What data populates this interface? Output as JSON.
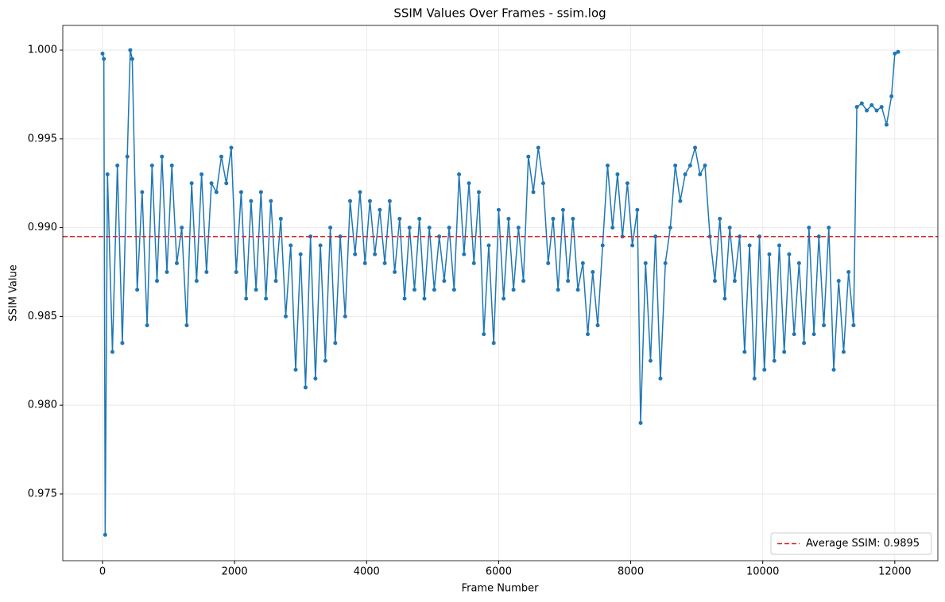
{
  "chart_data": {
    "type": "line",
    "title": "SSIM Values Over Frames - ssim.log",
    "x_label": "Frame Number",
    "y_label": "SSIM Value",
    "grid": true,
    "xlim": [
      -602,
      12652
    ],
    "ylim": [
      0.97124,
      1.00139
    ],
    "xticks": [
      0,
      2000,
      4000,
      6000,
      8000,
      10000,
      12000
    ],
    "yticks": [
      0.975,
      {
        "value": 0.98,
        "label": "0.980"
      },
      0.985,
      {
        "value": 0.99,
        "label": "0.990"
      },
      0.995,
      {
        "value": 1.0,
        "label": "1.000"
      }
    ],
    "x": [
      0,
      20,
      40,
      75,
      150,
      225,
      300,
      375,
      420,
      450,
      525,
      600,
      675,
      750,
      825,
      900,
      975,
      1050,
      1125,
      1200,
      1275,
      1350,
      1425,
      1500,
      1575,
      1650,
      1725,
      1800,
      1875,
      1950,
      2025,
      2100,
      2175,
      2250,
      2325,
      2400,
      2475,
      2550,
      2625,
      2700,
      2775,
      2850,
      2925,
      3000,
      3075,
      3150,
      3225,
      3300,
      3375,
      3450,
      3525,
      3600,
      3675,
      3750,
      3825,
      3900,
      3975,
      4050,
      4125,
      4200,
      4275,
      4350,
      4425,
      4500,
      4575,
      4650,
      4725,
      4800,
      4875,
      4950,
      5025,
      5100,
      5175,
      5250,
      5325,
      5400,
      5475,
      5550,
      5625,
      5700,
      5775,
      5850,
      5925,
      6000,
      6075,
      6150,
      6225,
      6300,
      6375,
      6450,
      6525,
      6600,
      6675,
      6750,
      6825,
      6900,
      6975,
      7050,
      7125,
      7200,
      7275,
      7350,
      7425,
      7500,
      7575,
      7650,
      7725,
      7800,
      7875,
      7950,
      8025,
      8100,
      8150,
      8225,
      8300,
      8375,
      8450,
      8525,
      8600,
      8675,
      8750,
      8825,
      8900,
      8975,
      9050,
      9125,
      9200,
      9275,
      9350,
      9425,
      9500,
      9575,
      9650,
      9725,
      9800,
      9875,
      9950,
      10025,
      10100,
      10175,
      10250,
      10325,
      10400,
      10475,
      10550,
      10625,
      10700,
      10775,
      10850,
      10925,
      11000,
      11075,
      11150,
      11225,
      11300,
      11375,
      11425,
      11500,
      11575,
      11650,
      11725,
      11800,
      11875,
      11950,
      12000,
      12050
    ],
    "series": [
      {
        "color": "#1f77b4",
        "values": [
          0.9998,
          0.9995,
          0.9727,
          0.993,
          0.983,
          0.9935,
          0.9835,
          0.994,
          1.0,
          0.9995,
          0.9865,
          0.992,
          0.9845,
          0.9935,
          0.987,
          0.994,
          0.9875,
          0.9935,
          0.988,
          0.99,
          0.9845,
          0.9925,
          0.987,
          0.993,
          0.9875,
          0.9925,
          0.992,
          0.994,
          0.9925,
          0.9945,
          0.9875,
          0.992,
          0.986,
          0.9915,
          0.9865,
          0.992,
          0.986,
          0.9915,
          0.987,
          0.9905,
          0.985,
          0.989,
          0.982,
          0.9885,
          0.981,
          0.9895,
          0.9815,
          0.989,
          0.9825,
          0.99,
          0.9835,
          0.9895,
          0.985,
          0.9915,
          0.9885,
          0.992,
          0.988,
          0.9915,
          0.9885,
          0.991,
          0.988,
          0.9915,
          0.9875,
          0.9905,
          0.986,
          0.99,
          0.9865,
          0.9905,
          0.986,
          0.99,
          0.9865,
          0.9895,
          0.987,
          0.99,
          0.9865,
          0.993,
          0.9885,
          0.9925,
          0.988,
          0.992,
          0.984,
          0.989,
          0.9835,
          0.991,
          0.986,
          0.9905,
          0.9865,
          0.99,
          0.987,
          0.994,
          0.992,
          0.9945,
          0.9925,
          0.988,
          0.9905,
          0.9865,
          0.991,
          0.987,
          0.9905,
          0.9865,
          0.988,
          0.984,
          0.9875,
          0.9845,
          0.989,
          0.9935,
          0.99,
          0.993,
          0.9895,
          0.9925,
          0.989,
          0.991,
          0.979,
          0.988,
          0.9825,
          0.9895,
          0.9815,
          0.988,
          0.99,
          0.9935,
          0.9915,
          0.993,
          0.9935,
          0.9945,
          0.993,
          0.9935,
          0.9895,
          0.987,
          0.9905,
          0.986,
          0.99,
          0.987,
          0.9895,
          0.983,
          0.989,
          0.9815,
          0.9895,
          0.982,
          0.9885,
          0.9825,
          0.989,
          0.983,
          0.9885,
          0.984,
          0.988,
          0.9835,
          0.99,
          0.984,
          0.9895,
          0.9845,
          0.99,
          0.982,
          0.987,
          0.983,
          0.9875,
          0.9845,
          0.9968,
          0.997,
          0.9966,
          0.9969,
          0.9966,
          0.9968,
          0.9958,
          0.9974,
          0.9998,
          0.9999
        ]
      }
    ],
    "reference_line": {
      "value": 0.9895,
      "label": "Average SSIM: 0.9895",
      "color": "#d62728"
    },
    "legend": "lower right"
  }
}
